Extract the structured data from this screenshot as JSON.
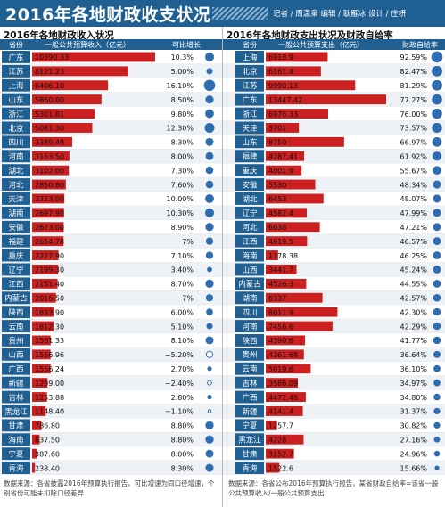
{
  "header": {
    "title": "2016年各地财政收支状况",
    "credits": "记者 / 周潇枭    编辑 / 耿雁冰    设计 / 庄枅"
  },
  "left": {
    "section_title": "2016年各地财政收入状况",
    "col_province": "省份",
    "col_value": "一般公共预算收入（亿元）",
    "col_growth": "可比增长",
    "note": "数据来源：各省披露2016年预算执行报告，可比增速为同口径增速，个别省份可能未扣除口径差异"
  },
  "right": {
    "section_title": "2016年各地财政支出状况及财政自给率",
    "col_province": "省份",
    "col_value": "一般公共预算支出（亿元）",
    "col_ratio": "财政自给率",
    "note": "数据来源：各省公布2016年预算执行报告，某省财政自给率=该省一般公共预算收入/一般公共预算支出"
  },
  "colors": {
    "header": "#1f5f92",
    "row_label_bg": "#1f5f92",
    "bar": "#cc1f1f",
    "circle": "#2f6db0",
    "row_alt": "#eef1f5"
  },
  "chart_data": [
    {
      "type": "bar",
      "title": "2016年各地财政收入状况",
      "ylabel": "一般公共预算收入（亿元）",
      "categories": [
        "广东",
        "江苏",
        "上海",
        "山东",
        "浙江",
        "北京",
        "四川",
        "河南",
        "湖北",
        "河北",
        "天津",
        "湖南",
        "安徽",
        "福建",
        "重庆",
        "辽宁",
        "江西",
        "内蒙古",
        "陕西",
        "云南",
        "贵州",
        "山西",
        "广西",
        "新疆",
        "吉林",
        "黑龙江",
        "甘肃",
        "海南",
        "宁夏",
        "青海",
        "西藏"
      ],
      "values": [
        10390.33,
        8121.23,
        6406.1,
        5860.0,
        5301.81,
        5081.3,
        3389.4,
        3153.5,
        3102.0,
        2850.8,
        2723.0,
        2697.9,
        2673.0,
        2654.78,
        2227.9,
        2199.3,
        2151.4,
        2016.5,
        1833.9,
        1812.3,
        1561.33,
        1556.96,
        1556.24,
        1299.0,
        1253.88,
        1148.4,
        786.8,
        637.5,
        387.6,
        238.4,
        155.61
      ],
      "value_labels": [
        "10390.33",
        "8121.23",
        "6406.10",
        "5860.00",
        "5301.81",
        "5081.30",
        "3389.40",
        "3153.50",
        "3102.00",
        "2850.80",
        "2723.00",
        "2697.90",
        "2673.00",
        "2654.78",
        "2227.90",
        "2199.30",
        "2151.40",
        "2016.50",
        "1833.90",
        "1812.30",
        "1561.33",
        "1556.96",
        "1556.24",
        "1299.00",
        "1253.88",
        "1148.40",
        "786.80",
        "637.50",
        "387.60",
        "238.40",
        "155.61"
      ],
      "growth": [
        10.3,
        5.0,
        16.1,
        8.5,
        9.8,
        12.3,
        8.3,
        8.0,
        7.3,
        7.6,
        10.0,
        10.3,
        8.9,
        7.0,
        7.1,
        3.4,
        8.7,
        7.0,
        6.0,
        5.1,
        8.1,
        -5.2,
        2.7,
        -2.4,
        2.8,
        -1.1,
        8.8,
        8.8,
        8.0,
        8.3,
        13.5
      ],
      "growth_labels": [
        "10.3%",
        "5.00%",
        "16.10%",
        "8.50%",
        "9.80%",
        "12.30%",
        "8.30%",
        "8.00%",
        "7.30%",
        "7.60%",
        "10.00%",
        "10.30%",
        "8.90%",
        "7%",
        "7.10%",
        "3.40%",
        "8.70%",
        "7%",
        "6.00%",
        "5.10%",
        "8.10%",
        "−5.20%",
        "2.70%",
        "−2.40%",
        "2.80%",
        "−1.10%",
        "8.80%",
        "8.80%",
        "8.00%",
        "8.30%",
        "13.50%"
      ]
    },
    {
      "type": "bar",
      "title": "2016年各地财政支出状况及财政自给率",
      "ylabel": "一般公共预算支出（亿元）",
      "categories": [
        "上海",
        "北京",
        "江苏",
        "广东",
        "浙江",
        "天津",
        "山东",
        "福建",
        "重庆",
        "安徽",
        "湖北",
        "辽宁",
        "河北",
        "江西",
        "海南",
        "山西",
        "内蒙古",
        "湖南",
        "四川",
        "河南",
        "陕西",
        "贵州",
        "云南",
        "吉林",
        "广西",
        "新疆",
        "宁夏",
        "黑龙江",
        "甘肃",
        "青海",
        "西藏"
      ],
      "values": [
        6918.9,
        6161.4,
        9990.13,
        13447.42,
        6976.33,
        3701,
        8750,
        4287.41,
        4001.9,
        5530,
        6453,
        4582.4,
        6038,
        4619.5,
        1378.38,
        3441.7,
        4526.3,
        6337,
        8011.9,
        7456.6,
        4390.6,
        4261.68,
        5019.6,
        3586.09,
        4472.48,
        4141.4,
        1257.7,
        4228,
        3152.7,
        1522.6,
        1585.54
      ],
      "value_labels": [
        "6918.9",
        "6161.4",
        "9990.13",
        "13447.42",
        "6976.33",
        "3701",
        "8750",
        "4287.41",
        "4001.9",
        "5530",
        "6453",
        "4582.4",
        "6038",
        "4619.5",
        "1378.38",
        "3441.7",
        "4526.3",
        "6337",
        "8011.9",
        "7456.6",
        "4390.6",
        "4261.68",
        "5019.6",
        "3586.09",
        "4472.48",
        "4141.4",
        "1257.7",
        "4228",
        "3152.7",
        "1522.6",
        "1585.54"
      ],
      "self_sufficiency": [
        92.59,
        82.47,
        81.29,
        77.27,
        76.0,
        73.57,
        66.97,
        61.92,
        55.67,
        48.34,
        48.07,
        47.99,
        47.21,
        46.57,
        46.25,
        45.24,
        44.55,
        42.57,
        42.3,
        42.29,
        41.77,
        36.64,
        36.1,
        34.97,
        34.8,
        31.37,
        30.82,
        27.16,
        24.96,
        15.66,
        9.81
      ],
      "ratio_labels": [
        "92.59%",
        "82.47%",
        "81.29%",
        "77.27%",
        "76.00%",
        "73.57%",
        "66.97%",
        "61.92%",
        "55.67%",
        "48.34%",
        "48.07%",
        "47.99%",
        "47.21%",
        "46.57%",
        "46.25%",
        "45.24%",
        "44.55%",
        "42.57%",
        "42.30%",
        "42.29%",
        "41.77%",
        "36.64%",
        "36.10%",
        "34.97%",
        "34.80%",
        "31.37%",
        "30.82%",
        "27.16%",
        "24.96%",
        "15.66%",
        "9.81%"
      ]
    }
  ]
}
